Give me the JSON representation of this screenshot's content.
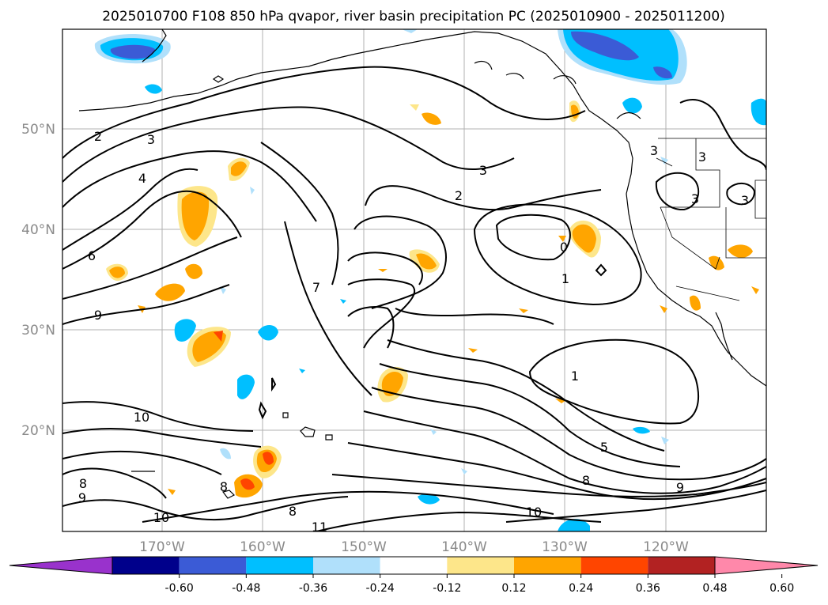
{
  "title": "2025010700 F108 850 hPa qvapor, river basin precipitation PC (2025010900 - 2025011200)",
  "lon_ticks": [
    "170°W",
    "160°W",
    "150°W",
    "140°W",
    "130°W",
    "120°W"
  ],
  "lat_ticks": [
    "50°N",
    "40°N",
    "30°N",
    "20°N"
  ],
  "colorbar": {
    "colors": [
      "#9932cc",
      "#00008b",
      "#3b5bd6",
      "#00bfff",
      "#b0e0fb",
      "#ffffff",
      "#fde68a",
      "#ffa500",
      "#ff4500",
      "#b22222",
      "#ff88aa"
    ],
    "labels": [
      "-0.60",
      "-0.48",
      "-0.36",
      "-0.24",
      "-0.12",
      "0.12",
      "0.24",
      "0.36",
      "0.48",
      "0.60"
    ]
  },
  "contour_labels": [
    "2",
    "3",
    "4",
    "6",
    "9",
    "10",
    "8",
    "9",
    "7",
    "3",
    "2",
    "0",
    "1",
    "1",
    "5",
    "8",
    "9",
    "10",
    "10",
    "8",
    "8",
    "3",
    "3",
    "3",
    "3",
    "11"
  ]
}
